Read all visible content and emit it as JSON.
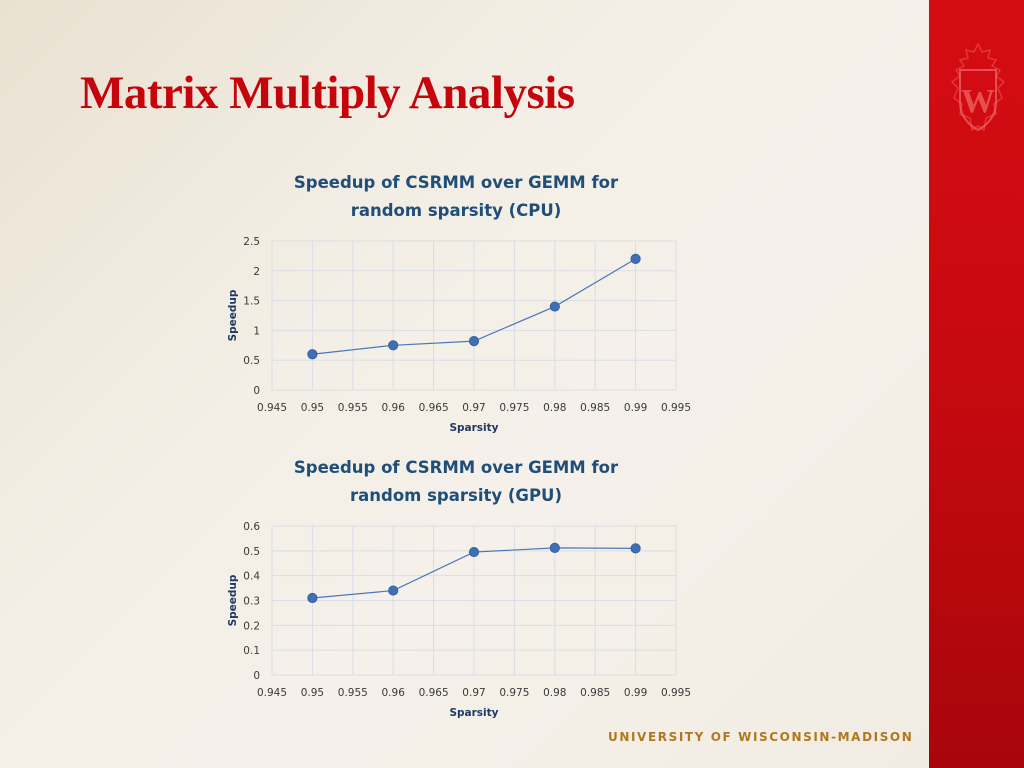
{
  "slide": {
    "title": "Matrix Multiply Analysis",
    "footer": "UNIVERSITY OF WISCONSIN-MADISON",
    "colors": {
      "title": "#c5050c",
      "band": "#c80a10",
      "footer": "#b0781e",
      "series": "#4a78b8"
    },
    "logo": "uw-crest-icon"
  },
  "chart_data": [
    {
      "type": "scatter",
      "title_lines": [
        "Speedup of CSRMM over GEMM for",
        "random sparsity (CPU)"
      ],
      "xlabel": "Sparsity",
      "ylabel": "Speedup",
      "xlim": [
        0.945,
        0.995
      ],
      "ylim": [
        0,
        2.5
      ],
      "x_ticks": [
        "0.945",
        "0.95",
        "0.955",
        "0.96",
        "0.965",
        "0.97",
        "0.975",
        "0.98",
        "0.985",
        "0.99",
        "0.995"
      ],
      "y_ticks": [
        "0",
        "0.5",
        "1",
        "1.5",
        "2",
        "2.5"
      ],
      "grid": true,
      "legend": "none",
      "series": [
        {
          "x": [
            0.95,
            0.96,
            0.97,
            0.98,
            0.99
          ],
          "y": [
            0.6,
            0.75,
            0.82,
            1.4,
            2.2
          ]
        }
      ]
    },
    {
      "type": "scatter",
      "title_lines": [
        "Speedup of CSRMM over GEMM for",
        "random sparsity (GPU)"
      ],
      "xlabel": "Sparsity",
      "ylabel": "Speedup",
      "xlim": [
        0.945,
        0.995
      ],
      "ylim": [
        0,
        0.6
      ],
      "x_ticks": [
        "0.945",
        "0.95",
        "0.955",
        "0.96",
        "0.965",
        "0.97",
        "0.975",
        "0.98",
        "0.985",
        "0.99",
        "0.995"
      ],
      "y_ticks": [
        "0",
        "0.1",
        "0.2",
        "0.3",
        "0.4",
        "0.5",
        "0.6"
      ],
      "grid": true,
      "legend": "none",
      "series": [
        {
          "x": [
            0.95,
            0.96,
            0.97,
            0.98,
            0.99
          ],
          "y": [
            0.31,
            0.34,
            0.495,
            0.512,
            0.51
          ]
        }
      ]
    }
  ]
}
